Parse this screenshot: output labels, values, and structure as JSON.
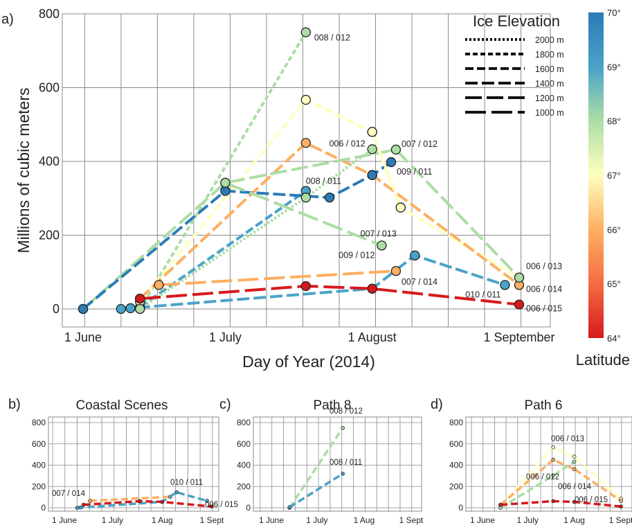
{
  "panel_labels": [
    "a)",
    "b)",
    "c)",
    "d)"
  ],
  "main": {
    "xlabel": "Day of Year (2014)",
    "ylabel": "Millions of cubic meters",
    "x_ticks": [
      "1 June",
      "1 July",
      "1 August",
      "1 September"
    ],
    "y_ticks": [
      "0",
      "200",
      "400",
      "600",
      "800"
    ]
  },
  "legend": {
    "title": "Ice Elevation",
    "items": [
      "2000 m",
      "1800 m",
      "1600 m",
      "1400 m",
      "1200 m",
      "1000 m"
    ]
  },
  "colorbar": {
    "title": "Latitude",
    "ticks": [
      "70°",
      "69°",
      "68°",
      "67°",
      "66°",
      "65°",
      "64°"
    ],
    "colors": [
      "#2c7bb6",
      "#4aa3c8",
      "#abdda4",
      "#ffffbf",
      "#fdae61",
      "#f46d43",
      "#d7191c"
    ]
  },
  "subplots": {
    "b_title": "Coastal Scenes",
    "c_title": "Path 8",
    "d_title": "Path 6",
    "x_ticks": [
      "1 June",
      "1 July",
      "1 Aug",
      "1 Sept"
    ],
    "y_ticks": [
      "0",
      "200",
      "400",
      "600",
      "800"
    ]
  },
  "chart_data": [
    {
      "panel": "a",
      "type": "line",
      "xlabel": "Day of Year (2014)",
      "ylabel": "Millions of cubic meters",
      "x_unit": "day of year",
      "xlim": [
        145,
        249
      ],
      "ylim": [
        0,
        800
      ],
      "x_ticks": [
        {
          "label": "1 June",
          "x": 152
        },
        {
          "label": "1 July",
          "x": 182
        },
        {
          "label": "1 August",
          "x": 213
        },
        {
          "label": "1 September",
          "x": 244
        }
      ],
      "grid": true,
      "legend_placement": "top-right",
      "series": [
        {
          "name": "008 / 012",
          "color": "#abdda4",
          "dash": "1800 m",
          "points": [
            [
              164,
              0
            ],
            [
              199,
              750
            ]
          ]
        },
        {
          "name": "008 / 011",
          "color": "#4aa3c8",
          "dash": "1600 m",
          "points": [
            [
              164,
              5
            ],
            [
              199,
              320
            ]
          ]
        },
        {
          "name": "006 / 013",
          "color": "#ffffbf",
          "dash": "1600 m",
          "points": [
            [
              164,
              20
            ],
            [
              199,
              567
            ],
            [
              213,
              480
            ],
            [
              219,
              275
            ],
            [
              244,
              85
            ]
          ]
        },
        {
          "name": "006 / 014",
          "color": "#fdae61",
          "dash": "1400 m",
          "points": [
            [
              164,
              28
            ],
            [
              199,
              450
            ],
            [
              213,
              363
            ],
            [
              244,
              65
            ]
          ]
        },
        {
          "name": "006 / 012",
          "color": "#abdda4",
          "dash": "2000 m",
          "points": [
            [
              164,
              0
            ],
            [
              199,
              302
            ],
            [
              213,
              433
            ]
          ]
        },
        {
          "name": "007 / 012",
          "color": "#abdda4",
          "dash": "1200 m",
          "points": [
            [
              152,
              0
            ],
            [
              182,
              342
            ],
            [
              218,
              432
            ],
            [
              244,
              85
            ]
          ]
        },
        {
          "name": "009 / 011",
          "color": "#2c7bb6",
          "dash": "1400 m",
          "points": [
            [
              152,
              0
            ],
            [
              182,
              320
            ],
            [
              204,
              302
            ],
            [
              213,
              363
            ],
            [
              217,
              398
            ]
          ]
        },
        {
          "name": "009 / 012",
          "color": "#abdda4",
          "dash": "1000 m",
          "points": [
            [
              182,
              342
            ],
            [
              215,
              172
            ]
          ]
        },
        {
          "name": "007 / 013",
          "color": "#ffffbf",
          "dash": "1400 m",
          "points": [
            [
              213,
              480
            ],
            [
              219,
              275
            ]
          ]
        },
        {
          "name": "007 / 014",
          "color": "#fdae61",
          "dash": "1000 m",
          "points": [
            [
              168,
              65
            ],
            [
              218,
              103
            ]
          ]
        },
        {
          "name": "010 / 011",
          "color": "#4aa3c8",
          "dash": "1400 m",
          "points": [
            [
              160,
              0
            ],
            [
              162,
              2
            ],
            [
              213,
              55
            ],
            [
              222,
              145
            ],
            [
              241,
              65
            ]
          ]
        },
        {
          "name": "006 / 015",
          "color": "#d7191c",
          "dash": "1000 m",
          "points": [
            [
              164,
              28
            ],
            [
              199,
              62
            ],
            [
              213,
              55
            ],
            [
              244,
              12
            ]
          ]
        }
      ]
    },
    {
      "panel": "b",
      "title": "Coastal Scenes",
      "type": "line",
      "xlim": [
        145,
        249
      ],
      "ylim": [
        0,
        800
      ],
      "series": [
        {
          "name": "007 / 014",
          "color": "#fdae61",
          "points": [
            [
              168,
              65
            ],
            [
              218,
              103
            ]
          ]
        },
        {
          "name": "010 / 011",
          "color": "#4aa3c8",
          "points": [
            [
              160,
              0
            ],
            [
              162,
              2
            ],
            [
              213,
              55
            ],
            [
              222,
              145
            ],
            [
              241,
              65
            ]
          ]
        },
        {
          "name": "006 / 015",
          "color": "#d7191c",
          "points": [
            [
              164,
              28
            ],
            [
              199,
              62
            ],
            [
              213,
              55
            ],
            [
              244,
              12
            ]
          ]
        }
      ]
    },
    {
      "panel": "c",
      "title": "Path 8",
      "type": "line",
      "xlim": [
        145,
        249
      ],
      "ylim": [
        0,
        800
      ],
      "series": [
        {
          "name": "008 / 012",
          "color": "#abdda4",
          "points": [
            [
              164,
              0
            ],
            [
              199,
              750
            ]
          ]
        },
        {
          "name": "008 / 011",
          "color": "#4aa3c8",
          "points": [
            [
              164,
              5
            ],
            [
              199,
              320
            ]
          ]
        }
      ]
    },
    {
      "panel": "d",
      "title": "Path 6",
      "type": "line",
      "xlim": [
        145,
        249
      ],
      "ylim": [
        0,
        800
      ],
      "series": [
        {
          "name": "006 / 013",
          "color": "#ffffbf",
          "points": [
            [
              164,
              20
            ],
            [
              199,
              567
            ],
            [
              213,
              480
            ],
            [
              244,
              85
            ]
          ]
        },
        {
          "name": "006 / 014",
          "color": "#fdae61",
          "points": [
            [
              164,
              28
            ],
            [
              199,
              450
            ],
            [
              213,
              363
            ],
            [
              244,
              65
            ]
          ]
        },
        {
          "name": "006 / 012",
          "color": "#abdda4",
          "points": [
            [
              164,
              0
            ],
            [
              199,
              302
            ],
            [
              213,
              433
            ]
          ]
        },
        {
          "name": "006 / 015",
          "color": "#d7191c",
          "points": [
            [
              164,
              28
            ],
            [
              199,
              62
            ],
            [
              213,
              55
            ],
            [
              244,
              12
            ]
          ]
        }
      ]
    }
  ]
}
